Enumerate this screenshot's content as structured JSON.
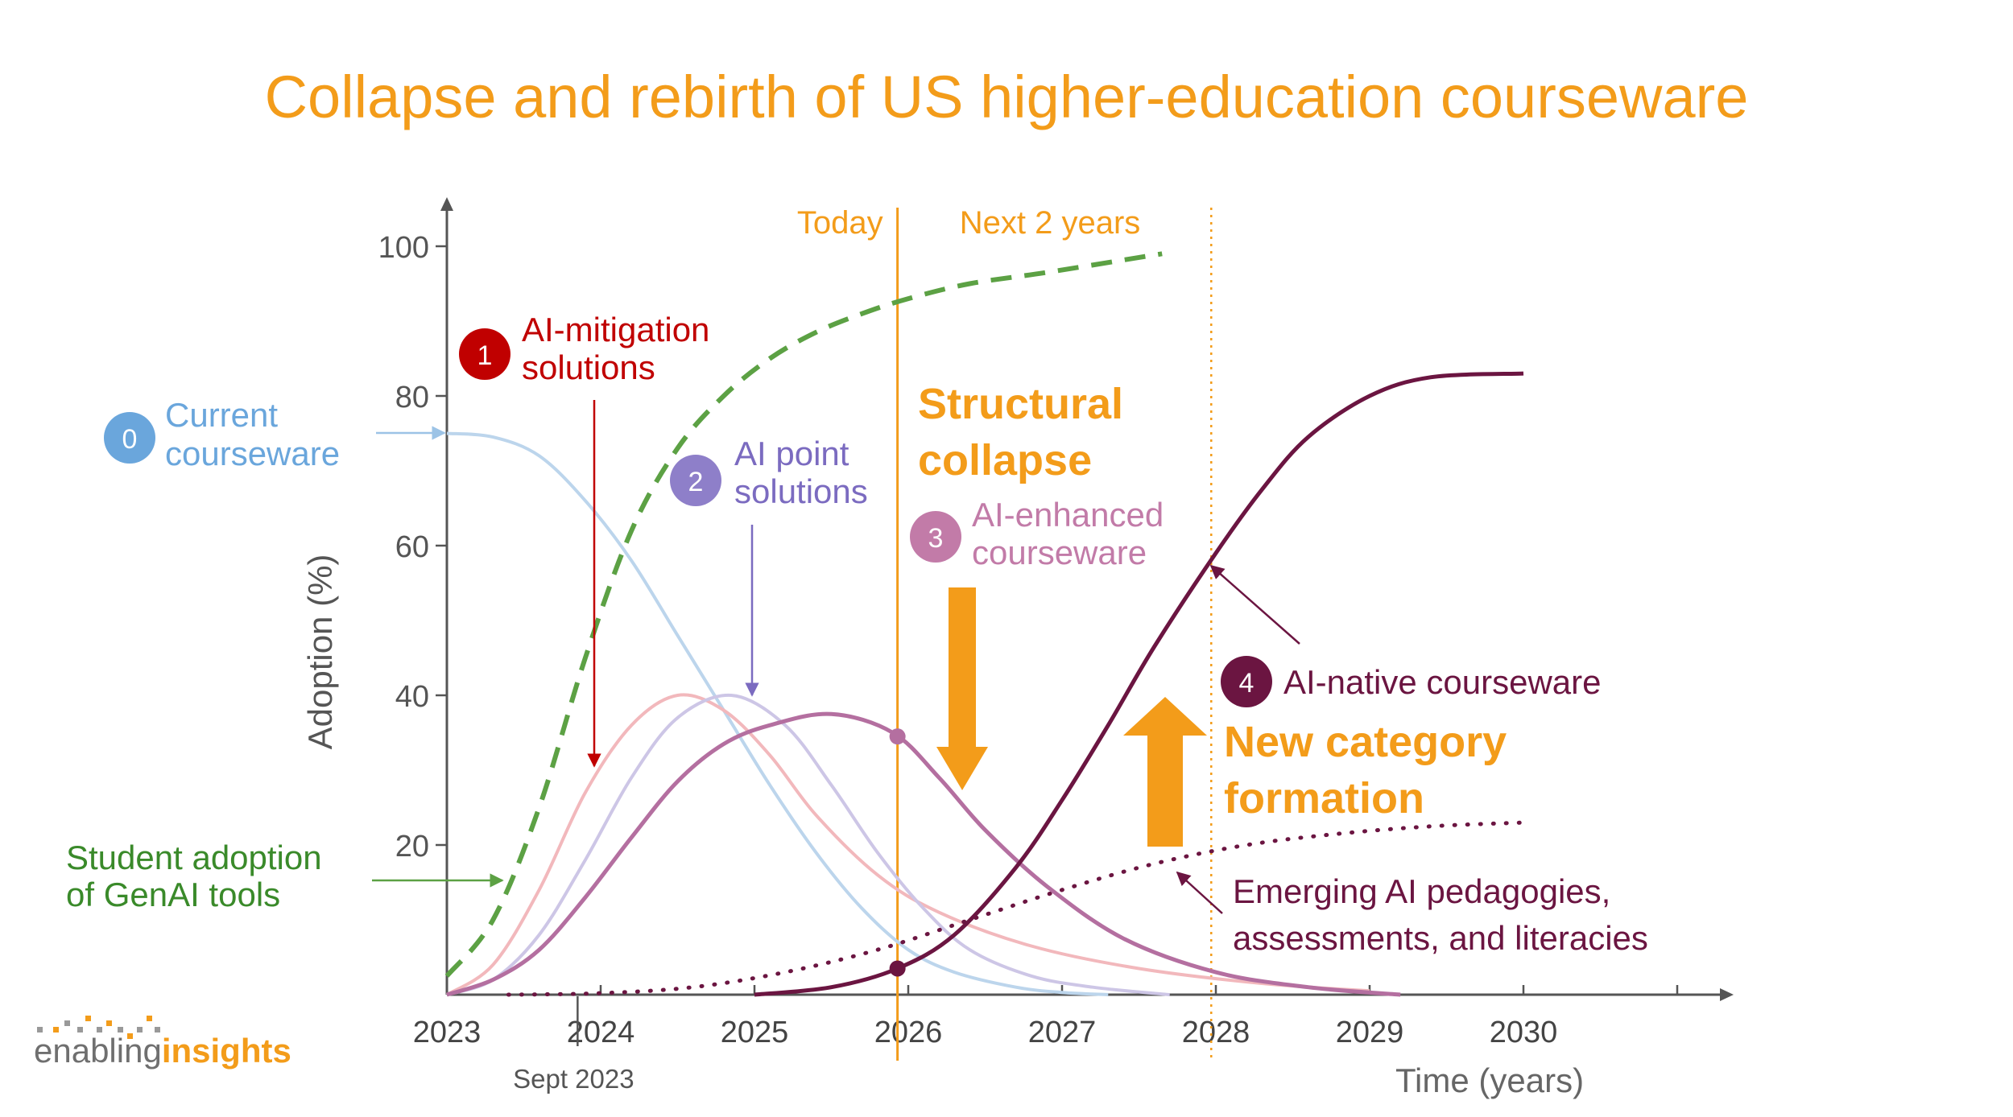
{
  "title": "Collapse and rebirth of US higher-education courseware",
  "logo": {
    "light": "enabling",
    "bold": "insights"
  },
  "colors": {
    "orange": "#f39c1a",
    "current": "#bcd5ec",
    "current_label": "#5b9bd5",
    "mitigation": "#f2b8bc",
    "mitigation_label": "#c00000",
    "point": "#cdc6e6",
    "point_label": "#7b6bc0",
    "enhanced": "#b46fa0",
    "enhanced_label": "#c27ba8",
    "native": "#6b1541",
    "student": "#5ca144",
    "student_label": "#3a8a2a"
  },
  "chart_data": {
    "type": "line",
    "title": "Collapse and rebirth of US higher-education courseware",
    "xlabel": "Time (years)",
    "ylabel": "Adoption (%)",
    "xlim": [
      2023,
      2031.5
    ],
    "ylim": [
      0,
      100
    ],
    "x_ticks": [
      2023,
      2024,
      2025,
      2026,
      2027,
      2028,
      2029,
      2030
    ],
    "x_tick_labels": [
      "2023",
      "2024",
      "2025",
      "2026",
      "2027",
      "2028",
      "2029",
      "2030"
    ],
    "y_ticks": [
      20,
      40,
      60,
      80,
      100
    ],
    "y_tick_labels": [
      "20",
      "40",
      "60",
      "80",
      "100"
    ],
    "annotations": {
      "sept": {
        "text": "Sept 2023",
        "x": 2023.85
      },
      "today": {
        "text": "Today",
        "x": 2025.93
      },
      "next": {
        "text": "Next 2 years",
        "x": 2027.97
      },
      "collapse": [
        "Structural",
        "collapse"
      ],
      "formation": [
        "New category",
        "formation"
      ]
    },
    "series": [
      {
        "key": "current",
        "name": "Current courseware",
        "badge": "0",
        "label_lines": [
          "Current",
          "courseware"
        ],
        "style": "solid",
        "points": [
          [
            2023.0,
            75
          ],
          [
            2023.3,
            74.5
          ],
          [
            2023.6,
            72
          ],
          [
            2023.9,
            66
          ],
          [
            2024.2,
            58
          ],
          [
            2024.5,
            48
          ],
          [
            2024.8,
            38
          ],
          [
            2025.1,
            28
          ],
          [
            2025.4,
            19
          ],
          [
            2025.7,
            11.5
          ],
          [
            2026.0,
            6
          ],
          [
            2026.3,
            3
          ],
          [
            2026.7,
            1
          ],
          [
            2027.0,
            0.3
          ],
          [
            2027.3,
            0
          ]
        ]
      },
      {
        "key": "mitigation",
        "name": "AI-mitigation solutions",
        "badge": "1",
        "label_lines": [
          "AI-mitigation",
          "solutions"
        ],
        "style": "solid",
        "points": [
          [
            2023.0,
            0
          ],
          [
            2023.3,
            4
          ],
          [
            2023.6,
            14
          ],
          [
            2023.9,
            27
          ],
          [
            2024.2,
            36
          ],
          [
            2024.5,
            40
          ],
          [
            2024.8,
            38
          ],
          [
            2025.1,
            32
          ],
          [
            2025.4,
            24
          ],
          [
            2025.8,
            16
          ],
          [
            2026.2,
            11
          ],
          [
            2026.8,
            6.5
          ],
          [
            2027.5,
            3.5
          ],
          [
            2028.3,
            1.5
          ],
          [
            2029.0,
            0.5
          ]
        ]
      },
      {
        "key": "point",
        "name": "AI point solutions",
        "badge": "2",
        "label_lines": [
          "AI point",
          "solutions"
        ],
        "style": "solid",
        "points": [
          [
            2023.0,
            0
          ],
          [
            2023.3,
            2
          ],
          [
            2023.6,
            8
          ],
          [
            2023.9,
            18
          ],
          [
            2024.2,
            29
          ],
          [
            2024.5,
            37
          ],
          [
            2024.85,
            40
          ],
          [
            2025.2,
            36
          ],
          [
            2025.5,
            28
          ],
          [
            2025.8,
            19
          ],
          [
            2026.1,
            11.5
          ],
          [
            2026.4,
            6
          ],
          [
            2026.8,
            2.5
          ],
          [
            2027.2,
            1
          ],
          [
            2027.7,
            0
          ]
        ]
      },
      {
        "key": "enhanced",
        "name": "AI-enhanced courseware",
        "badge": "3",
        "label_lines": [
          "AI-enhanced",
          "courseware"
        ],
        "style": "solid",
        "points": [
          [
            2023.0,
            0
          ],
          [
            2023.3,
            2
          ],
          [
            2023.6,
            6
          ],
          [
            2023.9,
            13
          ],
          [
            2024.2,
            21
          ],
          [
            2024.5,
            28.5
          ],
          [
            2024.8,
            33.5
          ],
          [
            2025.1,
            36
          ],
          [
            2025.5,
            37.5
          ],
          [
            2025.9,
            35
          ],
          [
            2026.2,
            29
          ],
          [
            2026.5,
            22
          ],
          [
            2026.9,
            14.5
          ],
          [
            2027.4,
            7.5
          ],
          [
            2028.0,
            3
          ],
          [
            2028.6,
            1
          ],
          [
            2029.2,
            0
          ]
        ]
      },
      {
        "key": "native",
        "name": "AI-native courseware",
        "badge": "4",
        "label_lines": [
          "AI-native courseware"
        ],
        "style": "solid",
        "points": [
          [
            2025.0,
            0
          ],
          [
            2025.5,
            1
          ],
          [
            2025.93,
            3.5
          ],
          [
            2026.3,
            8
          ],
          [
            2026.7,
            17
          ],
          [
            2027.0,
            26
          ],
          [
            2027.3,
            36
          ],
          [
            2027.6,
            46.5
          ],
          [
            2028.0,
            59
          ],
          [
            2028.3,
            67.5
          ],
          [
            2028.6,
            74.5
          ],
          [
            2029.0,
            80
          ],
          [
            2029.4,
            82.5
          ],
          [
            2030.0,
            83
          ]
        ]
      },
      {
        "key": "pedagogies",
        "name": "Emerging AI pedagogies, assessments, and literacies",
        "label_lines": [
          "Emerging AI pedagogies,",
          "assessments, and literacies"
        ],
        "style": "dotted",
        "points": [
          [
            2023.4,
            0
          ],
          [
            2024.0,
            0.2
          ],
          [
            2024.6,
            1
          ],
          [
            2025.2,
            3
          ],
          [
            2025.8,
            6
          ],
          [
            2026.4,
            10
          ],
          [
            2027.0,
            14
          ],
          [
            2027.6,
            17.5
          ],
          [
            2028.2,
            20
          ],
          [
            2028.8,
            21.5
          ],
          [
            2029.4,
            22.5
          ],
          [
            2030.0,
            23
          ]
        ]
      },
      {
        "key": "student",
        "name": "Student adoption of GenAI tools",
        "label_lines": [
          "Student adoption",
          "of GenAI tools"
        ],
        "style": "dashed",
        "points": [
          [
            2023.0,
            2.5
          ],
          [
            2023.3,
            10
          ],
          [
            2023.6,
            25
          ],
          [
            2023.9,
            45
          ],
          [
            2024.2,
            62
          ],
          [
            2024.5,
            73
          ],
          [
            2024.8,
            80
          ],
          [
            2025.1,
            85
          ],
          [
            2025.4,
            88.5
          ],
          [
            2025.7,
            91
          ],
          [
            2026.0,
            93
          ],
          [
            2026.4,
            95
          ],
          [
            2026.9,
            96.5
          ],
          [
            2027.5,
            98.5
          ],
          [
            2027.65,
            99
          ]
        ]
      }
    ],
    "markers": [
      {
        "series": "enhanced",
        "x": 2025.93,
        "y": 34.5
      },
      {
        "series": "native",
        "x": 2025.93,
        "y": 3.5
      }
    ]
  }
}
